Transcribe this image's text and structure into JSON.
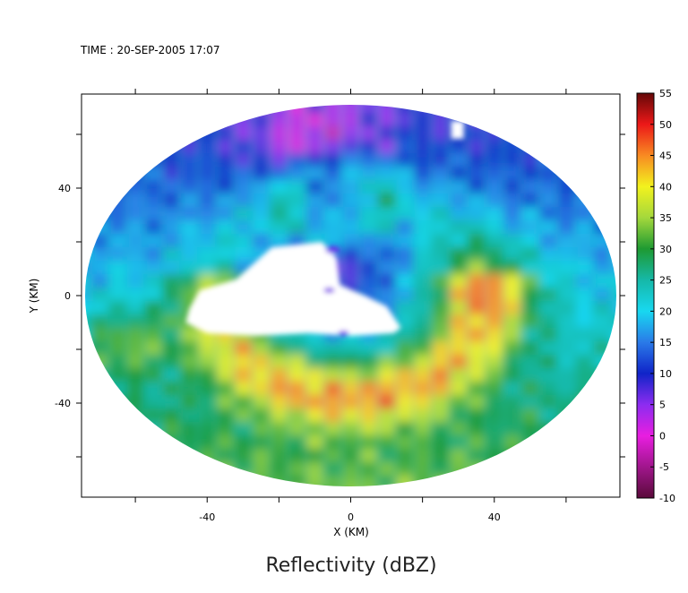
{
  "header": {
    "time_label": "TIME : 20-SEP-2005 17:07"
  },
  "chart_data": {
    "type": "heatmap",
    "title": "Reflectivity (dBZ)",
    "xlabel": "X (KM)",
    "ylabel": "Y (KM)",
    "xlim": [
      -75,
      75
    ],
    "ylim": [
      -75,
      75
    ],
    "x_ticks": [
      -40,
      0,
      40
    ],
    "y_ticks": [
      40,
      0,
      -40
    ],
    "colorbar": {
      "min": -10,
      "max": 55,
      "ticks": [
        55,
        50,
        45,
        40,
        35,
        30,
        25,
        20,
        15,
        10,
        5,
        0,
        -5,
        -10
      ],
      "stops": [
        {
          "value": -10,
          "color": "#5a0a3a"
        },
        {
          "value": -5,
          "color": "#a0168c"
        },
        {
          "value": 0,
          "color": "#e81ee0"
        },
        {
          "value": 5,
          "color": "#8c2cf0"
        },
        {
          "value": 10,
          "color": "#1024c8"
        },
        {
          "value": 15,
          "color": "#2a7ae8"
        },
        {
          "value": 20,
          "color": "#18d8f0"
        },
        {
          "value": 25,
          "color": "#16b8a8"
        },
        {
          "value": 30,
          "color": "#1e9a32"
        },
        {
          "value": 35,
          "color": "#a4d83c"
        },
        {
          "value": 40,
          "color": "#f2f21e"
        },
        {
          "value": 45,
          "color": "#f88a22"
        },
        {
          "value": 50,
          "color": "#ec1818"
        },
        {
          "value": 55,
          "color": "#640808"
        }
      ]
    },
    "domain": {
      "center": [
        0,
        0
      ],
      "radius_x": 74,
      "radius_y": 71
    },
    "no_data_regions": [
      {
        "type": "eye",
        "note": "white no-echo area",
        "x_range": [
          -45,
          14
        ],
        "y_range": [
          -20,
          20
        ]
      }
    ]
  }
}
